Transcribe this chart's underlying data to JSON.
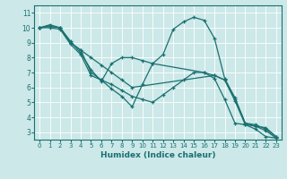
{
  "title": "",
  "xlabel": "Humidex (Indice chaleur)",
  "bg_color": "#cce8e8",
  "grid_color": "#ffffff",
  "line_color": "#1a7070",
  "xlim": [
    -0.5,
    23.5
  ],
  "ylim": [
    2.5,
    11.5
  ],
  "yticks": [
    3,
    4,
    5,
    6,
    7,
    8,
    9,
    10,
    11
  ],
  "xticks": [
    0,
    1,
    2,
    3,
    4,
    5,
    6,
    7,
    8,
    9,
    10,
    11,
    12,
    13,
    14,
    15,
    16,
    17,
    18,
    19,
    20,
    21,
    22,
    23
  ],
  "series": [
    {
      "x": [
        0,
        1,
        2,
        3,
        4,
        5,
        6,
        7,
        8,
        9,
        10,
        11,
        12,
        13,
        14,
        15,
        16,
        17,
        18,
        19,
        20,
        21,
        22,
        23
      ],
      "y": [
        10.0,
        10.2,
        10.0,
        9.0,
        8.5,
        7.0,
        6.5,
        5.9,
        5.4,
        4.7,
        6.2,
        7.6,
        8.2,
        9.9,
        10.4,
        10.7,
        10.5,
        9.3,
        6.6,
        5.3,
        3.6,
        3.4,
        3.3,
        2.7
      ]
    },
    {
      "x": [
        0,
        1,
        2,
        3,
        4,
        5,
        6,
        7,
        8,
        9,
        10,
        11,
        16,
        17,
        18,
        19,
        20,
        21,
        22,
        23
      ],
      "y": [
        10.0,
        10.1,
        10.0,
        9.1,
        8.3,
        7.2,
        6.4,
        7.6,
        8.0,
        8.0,
        7.8,
        7.6,
        7.0,
        6.8,
        6.5,
        5.2,
        3.6,
        3.5,
        3.2,
        2.7
      ]
    },
    {
      "x": [
        0,
        1,
        2,
        3,
        4,
        5,
        6,
        7,
        8,
        9,
        10,
        11,
        12,
        13,
        14,
        15,
        16,
        17,
        18,
        19,
        20,
        21,
        22,
        23
      ],
      "y": [
        10.0,
        10.0,
        9.9,
        8.9,
        8.2,
        6.8,
        6.5,
        6.2,
        5.8,
        5.4,
        5.2,
        5.0,
        5.5,
        6.0,
        6.5,
        7.0,
        7.0,
        6.6,
        5.2,
        3.6,
        3.5,
        3.2,
        2.7,
        2.6
      ]
    },
    {
      "x": [
        0,
        1,
        2,
        3,
        4,
        5,
        6,
        7,
        8,
        9,
        17,
        18,
        19,
        20,
        21,
        22,
        23
      ],
      "y": [
        10.0,
        10.1,
        10.0,
        9.0,
        8.5,
        8.0,
        7.5,
        7.0,
        6.5,
        6.0,
        6.8,
        6.5,
        5.1,
        3.5,
        3.4,
        3.1,
        2.6
      ]
    }
  ]
}
